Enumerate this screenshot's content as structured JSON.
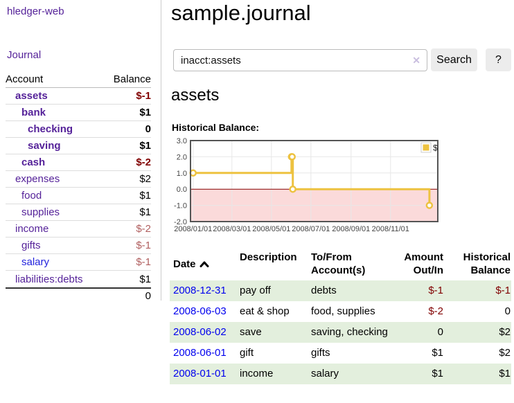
{
  "header": {
    "title": "sample.journal"
  },
  "sidebar": {
    "brand": "hledger-web",
    "journal_link": "Journal",
    "table": {
      "headers": {
        "account": "Account",
        "balance": "Balance"
      },
      "accounts": [
        {
          "name": "assets",
          "indent": 1,
          "bold": true,
          "balance": "$-1",
          "balance_style": "neg-strong"
        },
        {
          "name": "bank",
          "indent": 2,
          "bold": true,
          "balance": "$1",
          "balance_style": "plain"
        },
        {
          "name": "checking",
          "indent": 3,
          "bold": true,
          "balance": "0",
          "balance_style": "plain"
        },
        {
          "name": "saving",
          "indent": 3,
          "bold": true,
          "balance": "$1",
          "balance_style": "plain"
        },
        {
          "name": "cash",
          "indent": 2,
          "bold": true,
          "balance": "$-2",
          "balance_style": "neg-strong"
        },
        {
          "name": "expenses",
          "indent": 1,
          "bold": false,
          "balance": "$2",
          "balance_style": "plain"
        },
        {
          "name": "food",
          "indent": 2,
          "bold": false,
          "balance": "$1",
          "balance_style": "plain"
        },
        {
          "name": "supplies",
          "indent": 2,
          "bold": false,
          "balance": "$1",
          "balance_style": "plain"
        },
        {
          "name": "income",
          "indent": 1,
          "bold": false,
          "balance": "$-2",
          "balance_style": "neg-soft"
        },
        {
          "name": "gifts",
          "indent": 2,
          "bold": false,
          "balance": "$-1",
          "balance_style": "neg-soft"
        },
        {
          "name": "salary",
          "indent": 2,
          "bold": false,
          "balance": "$-1",
          "balance_style": "neg-soft",
          "link_style": "blue"
        },
        {
          "name": "liabilities:debts",
          "indent": 1,
          "bold": false,
          "balance": "$1",
          "balance_style": "plain"
        }
      ],
      "total": "0"
    }
  },
  "search": {
    "value": "inacct:assets",
    "clear_icon": "✕",
    "button_label": "Search",
    "help_label": "?"
  },
  "account_page": {
    "heading": "assets",
    "chart_label": "Historical Balance:"
  },
  "chart_data": {
    "type": "line",
    "title": "Historical Balance:",
    "series": [
      {
        "name": "$",
        "color": "#edc240",
        "step": true,
        "points": [
          {
            "date": "2008-01-01",
            "value": 1
          },
          {
            "date": "2008-06-01",
            "value": 2
          },
          {
            "date": "2008-06-02",
            "value": 2
          },
          {
            "date": "2008-06-03",
            "value": 0
          },
          {
            "date": "2008-12-31",
            "value": -1
          }
        ]
      }
    ],
    "x_tick_labels": [
      "2008/01/01",
      "2008/03/01",
      "2008/05/01",
      "2008/07/01",
      "2008/09/01",
      "2008/11/01"
    ],
    "y_tick_labels": [
      "3.0",
      "2.0",
      "1.0",
      "0.0",
      "-1.0",
      "-2.0"
    ],
    "y_ticks": [
      3,
      2,
      1,
      0,
      -1,
      -2
    ],
    "ylim": [
      -2,
      3
    ],
    "xlim_days": [
      -4,
      378
    ],
    "grid": true,
    "negative_region_fill": "#fbdada",
    "zero_line_color": "#8b0000",
    "legend": {
      "label": "$",
      "position": "top-right"
    }
  },
  "register": {
    "headers": {
      "date": "Date",
      "sort_icon": "chevron-up",
      "description": "Description",
      "accounts": "To/From Account(s)",
      "amount": "Amount Out/In",
      "balance": "Historical Balance"
    },
    "rows": [
      {
        "date": "2008-12-31",
        "description": "pay off",
        "accounts": "debts",
        "amount": "$-1",
        "balance": "$-1"
      },
      {
        "date": "2008-06-03",
        "description": "eat & shop",
        "accounts": "food, supplies",
        "amount": "$-2",
        "balance": "0"
      },
      {
        "date": "2008-06-02",
        "description": "save",
        "accounts": "saving, checking",
        "amount": "0",
        "balance": "$2"
      },
      {
        "date": "2008-06-01",
        "description": "gift",
        "accounts": "gifts",
        "amount": "$1",
        "balance": "$2"
      },
      {
        "date": "2008-01-01",
        "description": "income",
        "accounts": "salary",
        "amount": "$1",
        "balance": "$1"
      }
    ]
  },
  "colors": {
    "link_purple": "#552299",
    "link_blue_unvisited": "#2222dd",
    "date_link_blue": "#0000ee",
    "negative_strong": "#800000",
    "negative_soft": "#b05f5f",
    "row_stripe_green": "#e3efdd",
    "chart_gold": "#edc240",
    "chart_negative_fill": "#fbdada",
    "chart_zero_line": "#8b0000",
    "chart_frame": "#545454",
    "button_gray": "#ececec"
  }
}
